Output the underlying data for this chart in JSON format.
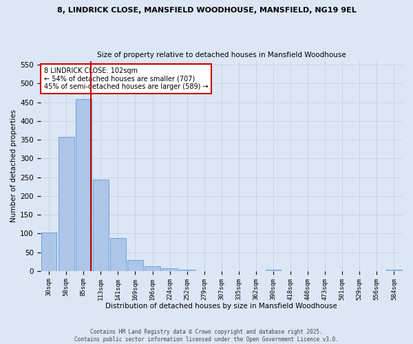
{
  "title_line1": "8, LINDRICK CLOSE, MANSFIELD WOODHOUSE, MANSFIELD, NG19 9EL",
  "title_line2": "Size of property relative to detached houses in Mansfield Woodhouse",
  "xlabel": "Distribution of detached houses by size in Mansfield Woodhouse",
  "ylabel": "Number of detached properties",
  "footer_line1": "Contains HM Land Registry data © Crown copyright and database right 2025.",
  "footer_line2": "Contains public sector information licensed under the Open Government Licence v3.0.",
  "categories": [
    "30sqm",
    "58sqm",
    "85sqm",
    "113sqm",
    "141sqm",
    "169sqm",
    "196sqm",
    "224sqm",
    "252sqm",
    "279sqm",
    "307sqm",
    "335sqm",
    "362sqm",
    "390sqm",
    "418sqm",
    "446sqm",
    "473sqm",
    "501sqm",
    "529sqm",
    "556sqm",
    "584sqm"
  ],
  "values": [
    103,
    357,
    458,
    243,
    88,
    30,
    13,
    7,
    4,
    0,
    0,
    0,
    0,
    3,
    0,
    0,
    0,
    0,
    0,
    0,
    3
  ],
  "bar_color": "#adc6e8",
  "bar_edge_color": "#5b9bd5",
  "grid_color": "#c8d4e8",
  "red_line_x": 2.42,
  "red_line_color": "#cc0000",
  "annotation_text": "8 LINDRICK CLOSE: 102sqm\n← 54% of detached houses are smaller (707)\n45% of semi-detached houses are larger (589) →",
  "annotation_box_color": "#ffffff",
  "annotation_box_edge": "#cc0000",
  "ylim": [
    0,
    560
  ],
  "yticks": [
    0,
    50,
    100,
    150,
    200,
    250,
    300,
    350,
    400,
    450,
    500,
    550
  ],
  "background_color": "#dce6f5"
}
